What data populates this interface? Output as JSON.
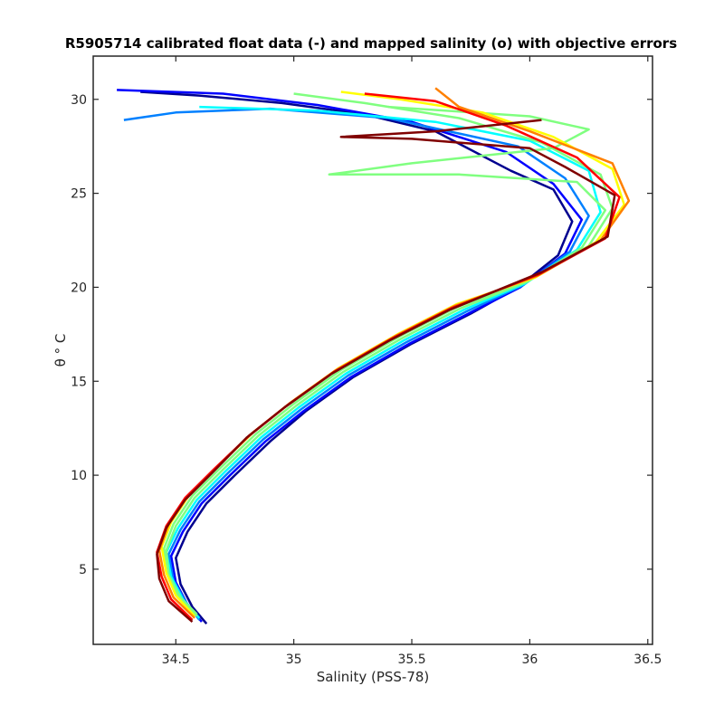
{
  "chart_data": {
    "type": "line",
    "title": "R5905714 calibrated float data (-) and mapped salinity (o) with objective errors",
    "xlabel": "Salinity (PSS-78)",
    "ylabel": "θ ° C",
    "xlim": [
      34.15,
      36.52
    ],
    "ylim": [
      1.0,
      32.3
    ],
    "xticks": [
      34.5,
      35,
      35.5,
      36,
      36.5
    ],
    "yticks": [
      5,
      10,
      15,
      20,
      25,
      30
    ],
    "grid": false,
    "legend": "none",
    "colormap": [
      "#00008f",
      "#0000ff",
      "#0080ff",
      "#00ffff",
      "#80ff80",
      "#ffff00",
      "#ff8000",
      "#ff0000",
      "#800000"
    ],
    "series": [
      {
        "points": [
          [
            34.63,
            2.1
          ],
          [
            34.57,
            3.0
          ],
          [
            34.52,
            4.2
          ],
          [
            34.5,
            5.6
          ],
          [
            34.55,
            7.0
          ],
          [
            34.63,
            8.5
          ],
          [
            34.75,
            10.0
          ],
          [
            34.9,
            11.8
          ],
          [
            35.05,
            13.4
          ],
          [
            35.25,
            15.2
          ],
          [
            35.5,
            17.0
          ],
          [
            35.75,
            18.6
          ],
          [
            35.95,
            20.0
          ],
          [
            36.12,
            21.7
          ],
          [
            36.18,
            23.5
          ],
          [
            36.1,
            25.2
          ],
          [
            35.92,
            26.2
          ],
          [
            35.6,
            28.3
          ],
          [
            35.3,
            29.2
          ],
          [
            34.95,
            29.8
          ],
          [
            34.6,
            30.2
          ],
          [
            34.35,
            30.4
          ]
        ]
      },
      {
        "points": [
          [
            34.61,
            2.2
          ],
          [
            34.55,
            3.1
          ],
          [
            34.5,
            4.3
          ],
          [
            34.48,
            5.7
          ],
          [
            34.53,
            7.0
          ],
          [
            34.61,
            8.5
          ],
          [
            34.73,
            10.0
          ],
          [
            34.88,
            11.8
          ],
          [
            35.04,
            13.4
          ],
          [
            35.24,
            15.2
          ],
          [
            35.49,
            17.0
          ],
          [
            35.74,
            18.6
          ],
          [
            35.96,
            20.0
          ],
          [
            36.15,
            21.8
          ],
          [
            36.22,
            23.6
          ],
          [
            36.1,
            25.5
          ],
          [
            35.9,
            27.2
          ],
          [
            35.5,
            28.8
          ],
          [
            35.1,
            29.7
          ],
          [
            34.7,
            30.3
          ],
          [
            34.25,
            30.5
          ]
        ]
      },
      {
        "points": [
          [
            34.6,
            2.3
          ],
          [
            34.54,
            3.3
          ],
          [
            34.49,
            4.4
          ],
          [
            34.47,
            5.8
          ],
          [
            34.52,
            7.1
          ],
          [
            34.6,
            8.6
          ],
          [
            34.72,
            10.1
          ],
          [
            34.87,
            11.9
          ],
          [
            35.03,
            13.5
          ],
          [
            35.23,
            15.3
          ],
          [
            35.48,
            17.1
          ],
          [
            35.73,
            18.7
          ],
          [
            35.97,
            20.1
          ],
          [
            36.17,
            21.9
          ],
          [
            36.25,
            23.8
          ],
          [
            36.15,
            25.8
          ],
          [
            35.95,
            27.5
          ],
          [
            35.4,
            29.0
          ],
          [
            34.9,
            29.5
          ],
          [
            34.5,
            29.3
          ],
          [
            34.28,
            28.9
          ]
        ]
      },
      {
        "points": [
          [
            34.6,
            2.4
          ],
          [
            34.53,
            3.4
          ],
          [
            34.48,
            4.6
          ],
          [
            34.46,
            5.9
          ],
          [
            34.51,
            7.2
          ],
          [
            34.59,
            8.7
          ],
          [
            34.71,
            10.2
          ],
          [
            34.86,
            12.0
          ],
          [
            35.02,
            13.6
          ],
          [
            35.22,
            15.4
          ],
          [
            35.47,
            17.2
          ],
          [
            35.72,
            18.8
          ],
          [
            35.98,
            20.2
          ],
          [
            36.2,
            22.0
          ],
          [
            36.3,
            24.0
          ],
          [
            36.25,
            26.2
          ],
          [
            36.0,
            27.8
          ],
          [
            35.6,
            28.8
          ],
          [
            35.1,
            29.4
          ],
          [
            34.6,
            29.6
          ]
        ]
      },
      {
        "points": [
          [
            34.59,
            2.5
          ],
          [
            34.52,
            3.5
          ],
          [
            34.47,
            4.7
          ],
          [
            34.46,
            6.0
          ],
          [
            34.5,
            7.3
          ],
          [
            34.58,
            8.8
          ],
          [
            34.7,
            10.3
          ],
          [
            34.85,
            12.1
          ],
          [
            35.01,
            13.7
          ],
          [
            35.21,
            15.5
          ],
          [
            35.46,
            17.3
          ],
          [
            35.71,
            18.9
          ],
          [
            35.99,
            20.3
          ],
          [
            36.22,
            22.1
          ],
          [
            36.32,
            24.1
          ],
          [
            36.2,
            25.6
          ],
          [
            35.7,
            26.0
          ],
          [
            35.15,
            26.0
          ],
          [
            35.5,
            26.6
          ],
          [
            36.1,
            27.4
          ],
          [
            36.25,
            28.4
          ],
          [
            36.0,
            29.1
          ],
          [
            35.4,
            29.6
          ]
        ]
      },
      {
        "points": [
          [
            34.59,
            2.6
          ],
          [
            34.51,
            3.6
          ],
          [
            34.46,
            4.8
          ],
          [
            34.45,
            6.1
          ],
          [
            34.49,
            7.4
          ],
          [
            34.57,
            8.9
          ],
          [
            34.69,
            10.4
          ],
          [
            34.84,
            12.2
          ],
          [
            35.0,
            13.8
          ],
          [
            35.2,
            15.6
          ],
          [
            35.45,
            17.4
          ],
          [
            35.7,
            19.0
          ],
          [
            36.0,
            20.4
          ],
          [
            36.25,
            22.2
          ],
          [
            36.35,
            24.2
          ],
          [
            36.3,
            26.0
          ],
          [
            36.05,
            27.7
          ],
          [
            35.7,
            29.0
          ],
          [
            35.3,
            29.8
          ],
          [
            35.0,
            30.3
          ]
        ]
      },
      {
        "points": [
          [
            34.58,
            2.5
          ],
          [
            34.5,
            3.6
          ],
          [
            34.46,
            4.8
          ],
          [
            34.44,
            6.2
          ],
          [
            34.48,
            7.5
          ],
          [
            34.56,
            9.0
          ],
          [
            34.68,
            10.5
          ],
          [
            34.83,
            12.3
          ],
          [
            34.99,
            13.9
          ],
          [
            35.19,
            15.7
          ],
          [
            35.44,
            17.5
          ],
          [
            35.69,
            19.1
          ],
          [
            36.02,
            20.5
          ],
          [
            36.28,
            22.4
          ],
          [
            36.4,
            24.4
          ],
          [
            36.35,
            26.3
          ],
          [
            36.1,
            28.0
          ],
          [
            35.8,
            29.3
          ],
          [
            35.45,
            30.0
          ],
          [
            35.2,
            30.4
          ]
        ]
      },
      {
        "points": [
          [
            34.58,
            2.4
          ],
          [
            34.49,
            3.5
          ],
          [
            34.45,
            4.7
          ],
          [
            34.43,
            6.0
          ],
          [
            34.47,
            7.4
          ],
          [
            34.55,
            8.9
          ],
          [
            34.67,
            10.4
          ],
          [
            34.82,
            12.2
          ],
          [
            34.98,
            13.8
          ],
          [
            35.18,
            15.6
          ],
          [
            35.43,
            17.4
          ],
          [
            35.68,
            19.0
          ],
          [
            36.03,
            20.6
          ],
          [
            36.3,
            22.5
          ],
          [
            36.42,
            24.6
          ],
          [
            36.35,
            26.6
          ],
          [
            36.0,
            28.3
          ],
          [
            35.7,
            29.6
          ],
          [
            35.6,
            30.6
          ]
        ]
      },
      {
        "points": [
          [
            34.57,
            2.3
          ],
          [
            34.48,
            3.4
          ],
          [
            34.44,
            4.6
          ],
          [
            34.42,
            5.9
          ],
          [
            34.46,
            7.3
          ],
          [
            34.54,
            8.8
          ],
          [
            34.66,
            10.3
          ],
          [
            34.81,
            12.1
          ],
          [
            34.97,
            13.7
          ],
          [
            35.17,
            15.5
          ],
          [
            35.42,
            17.3
          ],
          [
            35.67,
            18.9
          ],
          [
            36.04,
            20.7
          ],
          [
            36.32,
            22.6
          ],
          [
            36.38,
            24.8
          ],
          [
            36.2,
            26.9
          ],
          [
            35.9,
            28.6
          ],
          [
            35.6,
            29.9
          ],
          [
            35.3,
            30.3
          ]
        ]
      },
      {
        "points": [
          [
            34.57,
            2.2
          ],
          [
            34.47,
            3.3
          ],
          [
            34.43,
            4.5
          ],
          [
            34.42,
            5.8
          ],
          [
            34.46,
            7.2
          ],
          [
            34.54,
            8.7
          ],
          [
            34.66,
            10.2
          ],
          [
            34.8,
            12.0
          ],
          [
            34.96,
            13.6
          ],
          [
            35.16,
            15.4
          ],
          [
            35.41,
            17.2
          ],
          [
            35.66,
            18.8
          ],
          [
            36.05,
            20.8
          ],
          [
            36.33,
            22.7
          ],
          [
            36.36,
            24.9
          ],
          [
            36.15,
            26.4
          ],
          [
            36.0,
            27.4
          ],
          [
            35.5,
            27.9
          ],
          [
            35.2,
            28.0
          ],
          [
            35.6,
            28.3
          ],
          [
            36.05,
            28.9
          ]
        ]
      }
    ]
  }
}
